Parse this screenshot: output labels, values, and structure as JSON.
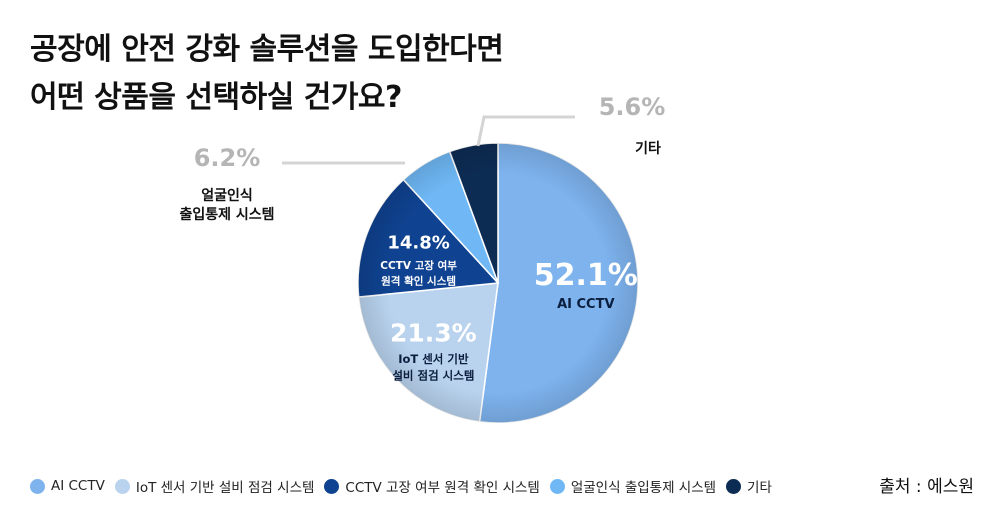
{
  "title_lines": [
    "공장에 안전 강화 솔루션을 도입한다면",
    "어떤 상품을 선택하실 건가요?"
  ],
  "source": "출처 : 에스원",
  "chart_data": {
    "type": "pie",
    "unit": "%",
    "slices": [
      {
        "name": "AI CCTV",
        "value": 52.1,
        "label": "52.1%",
        "callout": [
          "AI CCTV"
        ],
        "color": "#7eb3ee"
      },
      {
        "name": "IoT 센서 기반 설비 점검 시스템",
        "value": 21.3,
        "label": "21.3%",
        "callout": [
          "IoT 센서 기반",
          "설비 점검 시스템"
        ],
        "color": "#b9d3ef"
      },
      {
        "name": "CCTV 고장 여부 원격 확인 시스템",
        "value": 14.8,
        "label": "14.8%",
        "callout": [
          "CCTV 고장 여부",
          "원격 확인 시스템"
        ],
        "color": "#0f4290"
      },
      {
        "name": "얼굴인식 출입통제 시스템",
        "value": 6.2,
        "label": "6.2%",
        "callout": [
          "얼굴인식",
          "출입통제 시스템"
        ],
        "color": "#6fb8f5"
      },
      {
        "name": "기타",
        "value": 5.6,
        "label": "5.6%",
        "callout": [
          "기타"
        ],
        "color": "#0d2c54"
      }
    ],
    "legend_position": "bottom-left"
  }
}
